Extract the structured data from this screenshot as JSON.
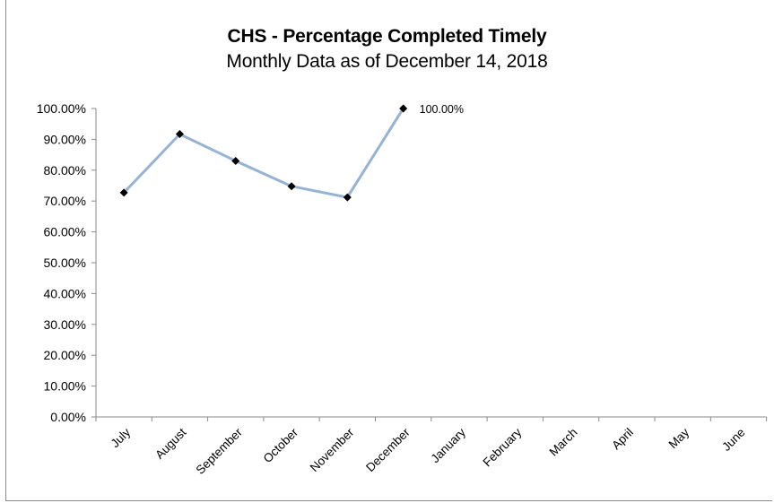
{
  "chart_data": {
    "type": "line",
    "title": "CHS - Percentage Completed Timely",
    "subtitle": "Monthly Data as of December 14, 2018",
    "xlabel": "",
    "ylabel": "",
    "categories": [
      "July",
      "August",
      "September",
      "October",
      "November",
      "December",
      "January",
      "February",
      "March",
      "April",
      "May",
      "June"
    ],
    "series": [
      {
        "values": [
          72.7,
          91.7,
          83.0,
          74.8,
          71.2,
          100.0,
          null,
          null,
          null,
          null,
          null,
          null
        ]
      }
    ],
    "y_ticks": [
      "0.00%",
      "10.00%",
      "20.00%",
      "30.00%",
      "40.00%",
      "50.00%",
      "60.00%",
      "70.00%",
      "80.00%",
      "90.00%",
      "100.00%"
    ],
    "ylim": [
      0,
      100
    ],
    "data_labels": [
      {
        "category": "December",
        "text": "100.00%"
      }
    ],
    "grid": false,
    "legend": "none",
    "colors": {
      "line": "#95b3d7",
      "marker": "#000000",
      "axis": "#8a8a8a"
    }
  }
}
